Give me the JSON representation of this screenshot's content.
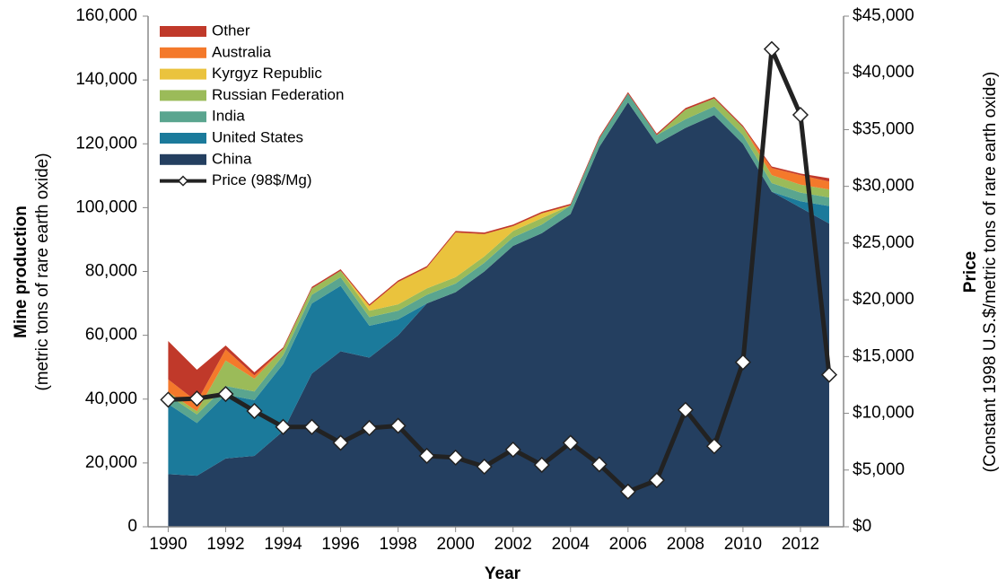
{
  "chart_data": {
    "type": "stacked-area-line",
    "xlabel": "Year",
    "ylabel": "Mine production",
    "ylabel_note": "(metric tons of rare earth oxide)",
    "y2label": "Price",
    "y2label_note": "(Constant 1998 U.S.$/metric tons of rare earth oxide)",
    "x": [
      1990,
      1991,
      1992,
      1993,
      1994,
      1995,
      1996,
      1997,
      1998,
      1999,
      2000,
      2001,
      2002,
      2003,
      2004,
      2005,
      2006,
      2007,
      2008,
      2009,
      2010,
      2011,
      2012,
      2013
    ],
    "series": [
      {
        "name": "China",
        "color": "#243f60",
        "values": [
          16500,
          16000,
          21400,
          22200,
          30000,
          48000,
          55000,
          53000,
          60000,
          70000,
          73500,
          80000,
          88000,
          92000,
          98000,
          119000,
          133000,
          120000,
          125000,
          129000,
          120000,
          105000,
          100000,
          95000
        ]
      },
      {
        "name": "United States",
        "color": "#1b7a9b",
        "values": [
          22000,
          16500,
          20000,
          17500,
          21000,
          22000,
          20500,
          10000,
          5000,
          0,
          0,
          0,
          0,
          0,
          0,
          0,
          0,
          0,
          0,
          0,
          0,
          0,
          2000,
          5500
        ]
      },
      {
        "name": "India",
        "color": "#5aa58f",
        "values": [
          2700,
          2700,
          2700,
          2700,
          2700,
          2700,
          2700,
          2700,
          2700,
          2700,
          2700,
          2700,
          2700,
          2700,
          2700,
          2700,
          2700,
          2700,
          2700,
          2700,
          2700,
          2700,
          2700,
          2700
        ]
      },
      {
        "name": "Russian Federation",
        "color": "#9bbb59",
        "values": [
          1000,
          1000,
          8000,
          4000,
          2000,
          2000,
          2000,
          2000,
          2000,
          2000,
          2000,
          2000,
          2000,
          2000,
          0,
          0,
          0,
          0,
          3000,
          2500,
          2500,
          2500,
          2500,
          2500
        ]
      },
      {
        "name": "Kyrgyz Republic",
        "color": "#eac33d",
        "values": [
          0,
          0,
          0,
          0,
          0,
          0,
          0,
          1500,
          7000,
          6500,
          14000,
          7000,
          1500,
          1500,
          0,
          0,
          0,
          0,
          0,
          0,
          0,
          0,
          0,
          0
        ]
      },
      {
        "name": "Australia",
        "color": "#f4792b",
        "values": [
          4000,
          3000,
          3500,
          1000,
          0,
          0,
          0,
          0,
          0,
          0,
          0,
          0,
          0,
          0,
          0,
          0,
          0,
          0,
          0,
          0,
          0,
          2200,
          3000,
          2500
        ]
      },
      {
        "name": "Other",
        "color": "#c0392a",
        "values": [
          12000,
          10000,
          1200,
          1000,
          500,
          500,
          500,
          500,
          500,
          500,
          500,
          500,
          500,
          500,
          500,
          500,
          500,
          500,
          500,
          500,
          500,
          500,
          500,
          1000
        ]
      },
      {
        "name": "Price (98$/Mg)",
        "color": "#222222",
        "axis": "y2",
        "values": [
          11200,
          11300,
          11700,
          10200,
          8800,
          8800,
          7400,
          8700,
          8900,
          6250,
          6100,
          5300,
          6800,
          5450,
          7400,
          5500,
          3100,
          4100,
          10300,
          7100,
          14500,
          42100,
          36300,
          13400
        ]
      }
    ],
    "xlim": [
      1989.3,
      2013.5
    ],
    "xticks": [
      1990,
      1992,
      1994,
      1996,
      1998,
      2000,
      2002,
      2004,
      2006,
      2008,
      2010,
      2012
    ],
    "ylim": [
      0,
      160000
    ],
    "yticks": [
      0,
      {
        "value": 20000,
        "label": "20,000"
      },
      {
        "value": 40000,
        "label": "40,000"
      },
      {
        "value": 60000,
        "label": "60,000"
      },
      {
        "value": 80000,
        "label": "80,000"
      },
      {
        "value": 100000,
        "label": "100,000"
      },
      {
        "value": 120000,
        "label": "120,000"
      },
      {
        "value": 140000,
        "label": "140,000"
      },
      {
        "value": 160000,
        "label": "160,000"
      }
    ],
    "y2lim": [
      0,
      45000
    ],
    "y2ticks": [
      {
        "value": 0,
        "label": "$0"
      },
      {
        "value": 5000,
        "label": "$5,000"
      },
      {
        "value": 10000,
        "label": "$10,000"
      },
      {
        "value": 15000,
        "label": "$15,000"
      },
      {
        "value": 20000,
        "label": "$20,000"
      },
      {
        "value": 25000,
        "label": "$25,000"
      },
      {
        "value": 30000,
        "label": "$30,000"
      },
      {
        "value": 35000,
        "label": "$35,000"
      },
      {
        "value": 40000,
        "label": "$40,000"
      },
      {
        "value": 45000,
        "label": "$45,000"
      }
    ],
    "legend": "top-left"
  }
}
